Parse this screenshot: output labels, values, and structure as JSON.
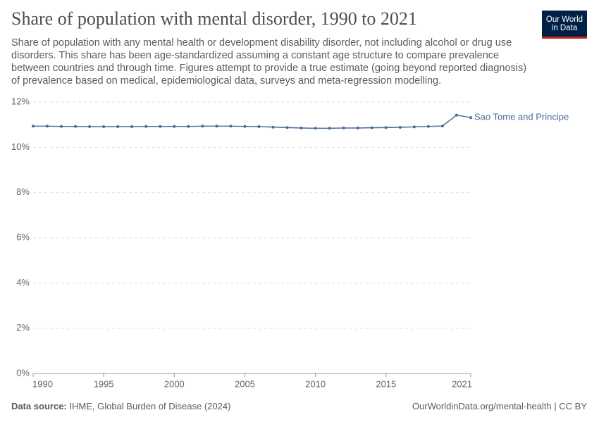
{
  "chart_data": {
    "type": "line",
    "title": "Share of population with mental disorder, 1990 to 2021",
    "subtitle": "Share of population with any mental health or development disability disorder, not including alcohol or drug use disorders. This share has been age-standardized assuming a constant age structure to compare prevalence between countries and through time. Figures attempt to provide a true estimate (going beyond reported diagnosis) of prevalence based on medical, epidemiological data, surveys and meta-regression modelling.",
    "logo": [
      "Our World",
      "in Data"
    ],
    "source_label": "Data source:",
    "source": "IHME, Global Burden of Disease (2024)",
    "url": "OurWorldinData.org/mental-health | CC BY",
    "x": [
      1990,
      1991,
      1992,
      1993,
      1994,
      1995,
      1996,
      1997,
      1998,
      1999,
      2000,
      2001,
      2002,
      2003,
      2004,
      2005,
      2006,
      2007,
      2008,
      2009,
      2010,
      2011,
      2012,
      2013,
      2014,
      2015,
      2016,
      2017,
      2018,
      2019,
      2020,
      2021
    ],
    "series": [
      {
        "name": "Sao Tome and Principe",
        "color": "#4c6a9c",
        "values": [
          10.93,
          10.93,
          10.92,
          10.92,
          10.91,
          10.91,
          10.91,
          10.91,
          10.92,
          10.92,
          10.92,
          10.92,
          10.93,
          10.93,
          10.93,
          10.92,
          10.91,
          10.89,
          10.87,
          10.85,
          10.84,
          10.84,
          10.85,
          10.85,
          10.86,
          10.87,
          10.88,
          10.9,
          10.92,
          10.94,
          11.42,
          11.31
        ]
      }
    ],
    "xlim": [
      1990,
      2021
    ],
    "xticks": [
      1990,
      1995,
      2000,
      2005,
      2010,
      2015,
      2021
    ],
    "ylim": [
      0,
      12
    ],
    "yticks": [
      {
        "value": 0,
        "label": "0%"
      },
      {
        "value": 2,
        "label": "2%"
      },
      {
        "value": 4,
        "label": "4%"
      },
      {
        "value": 6,
        "label": "6%"
      },
      {
        "value": 8,
        "label": "8%"
      },
      {
        "value": 10,
        "label": "10%"
      },
      {
        "value": 12,
        "label": "12%"
      }
    ],
    "grid": true
  }
}
